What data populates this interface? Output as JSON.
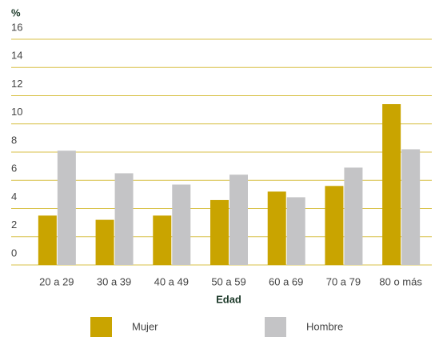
{
  "chart_data": {
    "type": "bar",
    "y_axis_label": "%",
    "x_axis_label": "Edad",
    "categories": [
      "20 a 29",
      "30 a 39",
      "40 a 49",
      "50 a 59",
      "60 a 69",
      "70 a 79",
      "80 o más"
    ],
    "series": [
      {
        "name": "Mujer",
        "color": "#c9a400",
        "values": [
          3.5,
          3.2,
          3.5,
          4.6,
          5.2,
          5.6,
          11.4
        ]
      },
      {
        "name": "Hombre",
        "color": "#c4c4c6",
        "values": [
          8.1,
          6.5,
          5.7,
          6.4,
          4.8,
          6.9,
          8.2
        ]
      }
    ],
    "ylim": [
      0,
      16
    ],
    "yticks": [
      0,
      2,
      4,
      6,
      8,
      10,
      12,
      14,
      16
    ],
    "grid": true
  }
}
